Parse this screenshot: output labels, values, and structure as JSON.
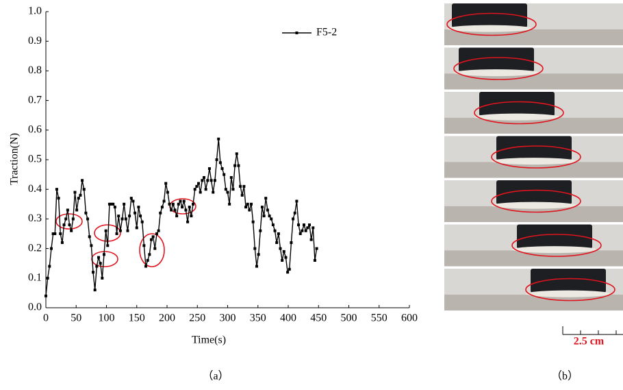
{
  "chart_data": {
    "type": "line",
    "xlabel": "Time(s)",
    "ylabel": "Traction(N)",
    "panel_label": "（a）",
    "xlim": [
      0,
      600
    ],
    "xticks": [
      0,
      50,
      100,
      150,
      200,
      250,
      300,
      350,
      400,
      450,
      500,
      550,
      600
    ],
    "ylim": [
      0,
      1.0
    ],
    "yticks": [
      {
        "value": 0,
        "label": "0.0"
      },
      0.1,
      0.2,
      0.3,
      0.4,
      0.5,
      0.6,
      0.7,
      0.8,
      0.9,
      {
        "value": 1.0,
        "label": "1.0"
      }
    ],
    "series": [
      {
        "name": "F5-2",
        "color": "#000000",
        "x": [
          0,
          3,
          6,
          9,
          12,
          15,
          18,
          21,
          24,
          27,
          30,
          33,
          36,
          39,
          42,
          45,
          48,
          51,
          54,
          57,
          60,
          63,
          66,
          69,
          72,
          75,
          78,
          81,
          84,
          87,
          90,
          93,
          96,
          99,
          102,
          105,
          108,
          111,
          114,
          117,
          120,
          123,
          126,
          129,
          132,
          135,
          138,
          141,
          144,
          147,
          150,
          153,
          156,
          159,
          162,
          165,
          168,
          171,
          174,
          177,
          180,
          183,
          186,
          189,
          192,
          195,
          198,
          201,
          204,
          207,
          210,
          213,
          216,
          219,
          222,
          225,
          228,
          231,
          234,
          237,
          240,
          243,
          246,
          249,
          252,
          255,
          258,
          261,
          264,
          267,
          270,
          273,
          276,
          279,
          282,
          285,
          288,
          291,
          294,
          297,
          300,
          303,
          306,
          309,
          312,
          315,
          318,
          321,
          324,
          327,
          330,
          333,
          336,
          339,
          342,
          345,
          348,
          351,
          354,
          357,
          360,
          363,
          366,
          369,
          372,
          375,
          378,
          381,
          384,
          387,
          390,
          393,
          396,
          399,
          402,
          405,
          408,
          411,
          414,
          417,
          420,
          423,
          426,
          429,
          432,
          435,
          438,
          441,
          444,
          447
        ],
        "values": [
          0.04,
          0.1,
          0.14,
          0.2,
          0.25,
          0.25,
          0.4,
          0.37,
          0.25,
          0.22,
          0.28,
          0.3,
          0.33,
          0.28,
          0.26,
          0.3,
          0.39,
          0.33,
          0.37,
          0.38,
          0.43,
          0.4,
          0.32,
          0.3,
          0.24,
          0.21,
          0.12,
          0.06,
          0.14,
          0.17,
          0.15,
          0.1,
          0.18,
          0.26,
          0.21,
          0.35,
          0.35,
          0.35,
          0.34,
          0.25,
          0.31,
          0.26,
          0.3,
          0.35,
          0.3,
          0.26,
          0.31,
          0.37,
          0.36,
          0.32,
          0.27,
          0.34,
          0.31,
          0.29,
          0.21,
          0.14,
          0.16,
          0.18,
          0.23,
          0.24,
          0.2,
          0.25,
          0.26,
          0.32,
          0.34,
          0.36,
          0.42,
          0.39,
          0.35,
          0.33,
          0.35,
          0.33,
          0.31,
          0.35,
          0.36,
          0.34,
          0.36,
          0.33,
          0.29,
          0.34,
          0.31,
          0.35,
          0.4,
          0.41,
          0.42,
          0.39,
          0.43,
          0.44,
          0.4,
          0.43,
          0.47,
          0.43,
          0.39,
          0.43,
          0.5,
          0.57,
          0.49,
          0.47,
          0.45,
          0.4,
          0.39,
          0.35,
          0.44,
          0.4,
          0.48,
          0.52,
          0.48,
          0.41,
          0.38,
          0.41,
          0.34,
          0.35,
          0.33,
          0.35,
          0.29,
          0.2,
          0.14,
          0.18,
          0.26,
          0.34,
          0.31,
          0.37,
          0.33,
          0.31,
          0.3,
          0.28,
          0.26,
          0.22,
          0.25,
          0.2,
          0.16,
          0.19,
          0.17,
          0.12,
          0.13,
          0.22,
          0.3,
          0.32,
          0.36,
          0.28,
          0.25,
          0.26,
          0.28,
          0.26,
          0.27,
          0.28,
          0.23,
          0.27,
          0.16,
          0.2
        ]
      }
    ]
  },
  "photos": {
    "panel_label": "（b）",
    "scale_label": "2.5 cm"
  }
}
